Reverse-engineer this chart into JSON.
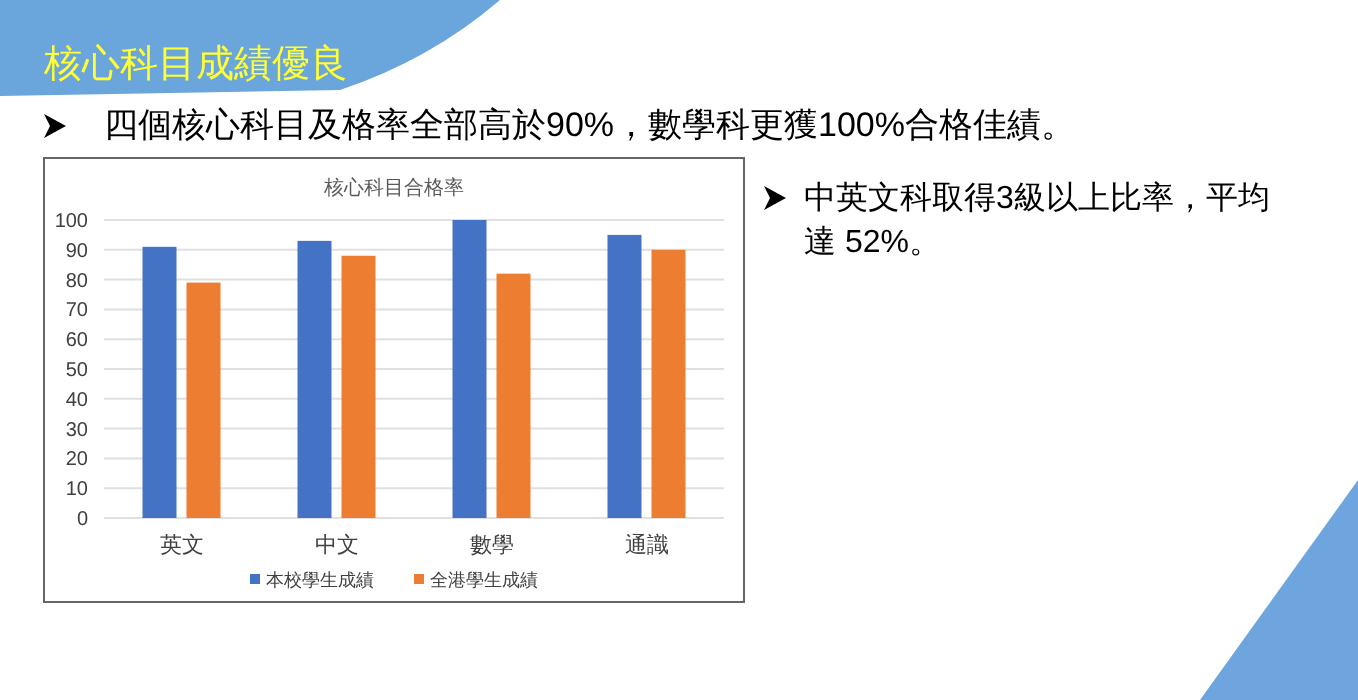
{
  "chart_data": {
    "type": "bar",
    "title": "核心科目合格率",
    "categories": [
      "英文",
      "中文",
      "數學",
      "通識"
    ],
    "series": [
      {
        "name": "本校學生成績",
        "color": "#4472c4",
        "values": [
          91,
          93,
          100,
          95
        ]
      },
      {
        "name": "全港學生成績",
        "color": "#ed7d31",
        "values": [
          79,
          88,
          82,
          90
        ]
      }
    ],
    "ylim": [
      0,
      100
    ],
    "yticks": [
      0,
      10,
      20,
      30,
      40,
      50,
      60,
      70,
      80,
      90,
      100
    ],
    "grid": "y",
    "legend": "bottom",
    "annotations": [
      "核心科目成績優良",
      "四個核心科目及格率全部高於90%，數學科更獲100%合格佳績。",
      "中英文科取得3級以上比率，平均達 52%。"
    ]
  }
}
